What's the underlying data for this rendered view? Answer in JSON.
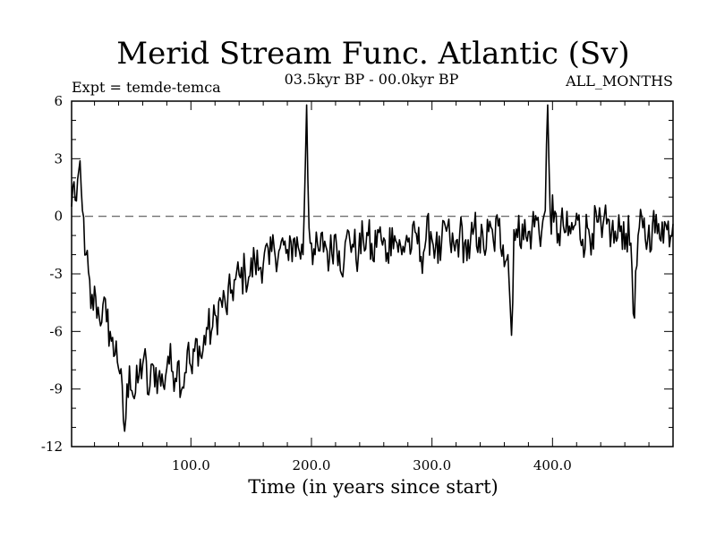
{
  "chart_data": {
    "type": "line",
    "title": "Merid Stream Func. Atlantic (Sv)",
    "subtitle_left": "Expt = temde-temca",
    "subtitle_center": "03.5kyr BP - 00.0kyr BP",
    "subtitle_right": "ALL_MONTHS",
    "xlabel": "Time (in years since start)",
    "ylabel": "",
    "xlim": [
      1,
      500
    ],
    "ylim": [
      -12,
      6
    ],
    "xticks": [
      100,
      200,
      300,
      400
    ],
    "xtick_labels": [
      "100.0",
      "200.0",
      "300.0",
      "400.0"
    ],
    "yticks": [
      -12,
      -9,
      -6,
      -3,
      0,
      3,
      6
    ],
    "ytick_labels": [
      "-12",
      "-9",
      "-6",
      "-3",
      "0",
      "3",
      "6"
    ],
    "reference_line": {
      "y": 0,
      "style": "dashed"
    },
    "series": [
      {
        "name": "Merid Stream Func. Atlantic",
        "x": [
          1,
          3,
          5,
          7,
          10,
          13,
          17,
          21,
          24,
          27,
          30,
          33,
          36,
          38,
          41,
          45,
          49,
          53,
          57,
          61,
          65,
          69,
          73,
          77,
          81,
          85,
          89,
          93,
          97,
          101,
          105,
          109,
          113,
          117,
          121,
          125,
          129,
          133,
          137,
          141,
          145,
          149,
          153,
          157,
          161,
          165,
          169,
          173,
          177,
          181,
          185,
          189,
          193,
          196,
          198,
          200,
          203,
          207,
          211,
          215,
          219,
          223,
          227,
          231,
          235,
          239,
          243,
          247,
          251,
          255,
          259,
          263,
          267,
          271,
          275,
          279,
          283,
          287,
          291,
          295,
          299,
          303,
          307,
          311,
          315,
          319,
          323,
          327,
          331,
          335,
          339,
          343,
          347,
          351,
          355,
          359,
          363,
          366,
          368,
          371,
          375,
          379,
          383,
          387,
          391,
          394,
          396,
          398,
          401,
          405,
          409,
          413,
          417,
          421,
          425,
          429,
          433,
          437,
          441,
          445,
          449,
          453,
          457,
          461,
          465,
          468,
          471,
          475,
          479,
          483,
          487,
          491,
          495,
          500
        ],
        "values": [
          0.5,
          1.8,
          0.8,
          2.4,
          0.3,
          -2.0,
          -4.8,
          -4.2,
          -5.3,
          -4.6,
          -5.5,
          -6.0,
          -7.3,
          -6.5,
          -8.2,
          -11.2,
          -7.8,
          -9.5,
          -8.3,
          -7.3,
          -9.3,
          -7.8,
          -8.4,
          -8.8,
          -7.3,
          -8.1,
          -7.6,
          -8.9,
          -7.0,
          -8.2,
          -6.4,
          -7.4,
          -5.8,
          -6.0,
          -5.2,
          -4.4,
          -4.8,
          -4.0,
          -3.3,
          -3.2,
          -2.9,
          -3.1,
          -2.3,
          -2.7,
          -1.9,
          -2.5,
          -1.6,
          -1.8,
          -1.5,
          -2.3,
          -1.2,
          -1.6,
          -2.0,
          5.8,
          -0.6,
          -1.4,
          -2.0,
          -1.8,
          -1.3,
          -2.2,
          -1.0,
          -1.8,
          -2.4,
          -0.8,
          -1.6,
          -2.0,
          -1.2,
          -1.0,
          -2.3,
          -0.7,
          -1.5,
          -1.9,
          -0.6,
          -1.4,
          -2.0,
          -1.0,
          -1.7,
          -0.9,
          -2.1,
          -1.2,
          -0.8,
          -1.6,
          -2.3,
          -0.5,
          -1.3,
          -1.8,
          -0.9,
          -1.4,
          -2.2,
          -0.6,
          -1.1,
          -1.7,
          -0.8,
          -1.3,
          -0.5,
          -1.5,
          -2.0,
          -6.2,
          -0.7,
          -1.1,
          -0.4,
          -1.3,
          -0.6,
          -0.2,
          -0.8,
          0.3,
          5.8,
          0.4,
          -0.3,
          -0.9,
          -0.5,
          -1.0,
          -0.7,
          -0.2,
          -1.2,
          -0.6,
          -0.9,
          -0.3,
          -1.1,
          -0.4,
          -0.8,
          -1.3,
          -0.5,
          -0.9,
          -1.4,
          -5.3,
          -1.0,
          -0.6,
          -1.2,
          -0.4,
          -0.9,
          -0.3,
          -0.7,
          -0.4
        ]
      }
    ]
  }
}
